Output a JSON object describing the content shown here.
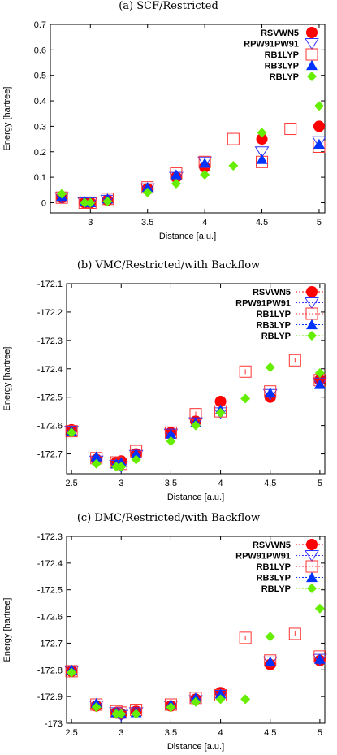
{
  "chart_data": [
    {
      "type": "scatter",
      "title": "(a)  SCF/Restricted",
      "xlabel": "Distance [a.u.]",
      "ylabel": "Energy [hartree]",
      "xlim": [
        2.65,
        5.05
      ],
      "ylim": [
        -0.04,
        0.7
      ],
      "xticks": [
        3,
        3.5,
        4,
        4.5,
        5
      ],
      "yticks": [
        0,
        0.1,
        0.2,
        0.3,
        0.4,
        0.5,
        0.6,
        0.7
      ],
      "legend": "top-right",
      "error_bars": false,
      "series": [
        {
          "name": "RSVWN5",
          "marker": "circle",
          "color": "#ff0000",
          "x": [
            2.75,
            2.95,
            3.0,
            3.15,
            3.5,
            3.75,
            4.0,
            4.5,
            5.0
          ],
          "y": [
            0.02,
            0.0,
            0.0,
            0.01,
            0.055,
            0.1,
            0.14,
            0.25,
            0.3
          ]
        },
        {
          "name": "RPW91PW91",
          "marker": "triangle-down",
          "color": "#3333ff",
          "x": [
            2.75,
            2.95,
            3.0,
            3.15,
            3.5,
            3.75,
            4.0,
            4.5,
            5.0
          ],
          "y": [
            0.02,
            0.0,
            0.0,
            0.01,
            0.055,
            0.1,
            0.16,
            0.2,
            0.24
          ]
        },
        {
          "name": "RB1LYP",
          "marker": "square",
          "color": "#ff3333",
          "x": [
            2.75,
            2.95,
            3.0,
            3.15,
            3.5,
            3.75,
            4.0,
            4.25,
            4.5,
            4.75,
            5.0
          ],
          "y": [
            0.02,
            0.0,
            0.0,
            0.015,
            0.06,
            0.115,
            0.16,
            0.25,
            0.16,
            0.29,
            0.22
          ]
        },
        {
          "name": "RB3LYP",
          "marker": "triangle-up",
          "color": "#0033ff",
          "x": [
            2.75,
            2.95,
            3.0,
            3.15,
            3.5,
            3.75,
            4.0,
            4.5,
            5.0
          ],
          "y": [
            0.025,
            0.005,
            0.0,
            0.015,
            0.06,
            0.11,
            0.155,
            0.17,
            0.23
          ]
        },
        {
          "name": "RBLYP",
          "marker": "diamond",
          "color": "#66ee00",
          "x": [
            2.75,
            2.95,
            3.0,
            3.15,
            3.5,
            3.75,
            4.0,
            4.25,
            4.5,
            5.0
          ],
          "y": [
            0.035,
            0.0,
            0.0,
            0.005,
            0.04,
            0.075,
            0.11,
            0.145,
            0.275,
            0.38
          ]
        }
      ]
    },
    {
      "type": "scatter",
      "title": "(b)  VMC/Restricted/with Backflow",
      "xlabel": "Distance [a.u.]",
      "ylabel": "Energy [hartree]",
      "xlim": [
        2.45,
        5.05
      ],
      "ylim": [
        -172.77,
        -172.1
      ],
      "xticks": [
        2.5,
        3,
        3.5,
        4,
        4.5,
        5
      ],
      "yticks": [
        -172.1,
        -172.2,
        -172.3,
        -172.4,
        -172.5,
        -172.6,
        -172.7
      ],
      "legend": "top-right",
      "error_bars": true,
      "series": [
        {
          "name": "RSVWN5",
          "marker": "circle",
          "color": "#ff0000",
          "x": [
            2.5,
            2.75,
            2.95,
            3.0,
            3.15,
            3.5,
            3.75,
            4.0,
            4.5,
            5.0
          ],
          "y": [
            -172.615,
            -172.72,
            -172.73,
            -172.725,
            -172.7,
            -172.625,
            -172.585,
            -172.515,
            -172.5,
            -172.44
          ]
        },
        {
          "name": "RPW91PW91",
          "marker": "triangle-down",
          "color": "#3333ff",
          "x": [
            2.5,
            2.75,
            2.95,
            3.0,
            3.15,
            3.5,
            3.75,
            4.0,
            4.5,
            5.0
          ],
          "y": [
            -172.62,
            -172.725,
            -172.74,
            -172.745,
            -172.705,
            -172.63,
            -172.59,
            -172.555,
            -172.49,
            -172.45
          ]
        },
        {
          "name": "RB1LYP",
          "marker": "square",
          "color": "#ff3333",
          "x": [
            2.5,
            2.75,
            2.95,
            3.0,
            3.15,
            3.5,
            3.75,
            4.0,
            4.25,
            4.5,
            4.75,
            5.0
          ],
          "y": [
            -172.62,
            -172.715,
            -172.73,
            -172.735,
            -172.69,
            -172.625,
            -172.56,
            -172.55,
            -172.41,
            -172.48,
            -172.37,
            -172.44
          ]
        },
        {
          "name": "RB3LYP",
          "marker": "triangle-up",
          "color": "#0033ff",
          "x": [
            2.5,
            2.75,
            2.95,
            3.0,
            3.15,
            3.5,
            3.75,
            4.0,
            4.5,
            5.0
          ],
          "y": [
            -172.62,
            -172.71,
            -172.735,
            -172.73,
            -172.7,
            -172.63,
            -172.59,
            -172.545,
            -172.485,
            -172.455
          ]
        },
        {
          "name": "RBLYP",
          "marker": "diamond",
          "color": "#66ee00",
          "x": [
            2.5,
            2.75,
            2.95,
            3.0,
            3.15,
            3.5,
            3.75,
            4.0,
            4.25,
            4.5,
            5.0
          ],
          "y": [
            -172.625,
            -172.735,
            -172.745,
            -172.745,
            -172.72,
            -172.655,
            -172.6,
            -172.555,
            -172.505,
            -172.395,
            -172.415
          ]
        }
      ]
    },
    {
      "type": "scatter",
      "title": "(c)  DMC/Restricted/with Backflow",
      "xlabel": "Distance [a.u.]",
      "ylabel": "Energy [hartree]",
      "xlim": [
        2.45,
        5.05
      ],
      "ylim": [
        -173.0,
        -172.3
      ],
      "xticks": [
        2.5,
        3,
        3.5,
        4,
        4.5,
        5
      ],
      "yticks": [
        -172.3,
        -172.4,
        -172.5,
        -172.6,
        -172.7,
        -172.8,
        -172.9,
        -173
      ],
      "legend": "top-right",
      "error_bars": true,
      "series": [
        {
          "name": "RSVWN5",
          "marker": "circle",
          "color": "#ff0000",
          "x": [
            2.5,
            2.75,
            2.95,
            3.0,
            3.15,
            3.5,
            3.75,
            4.0,
            4.5,
            5.0
          ],
          "y": [
            -172.805,
            -172.935,
            -172.96,
            -172.965,
            -172.955,
            -172.935,
            -172.91,
            -172.885,
            -172.78,
            -172.765
          ]
        },
        {
          "name": "RPW91PW91",
          "marker": "triangle-down",
          "color": "#3333ff",
          "x": [
            2.5,
            2.75,
            2.95,
            3.0,
            3.15,
            3.5,
            3.75,
            4.0,
            4.5,
            5.0
          ],
          "y": [
            -172.805,
            -172.935,
            -172.96,
            -172.97,
            -172.96,
            -172.935,
            -172.915,
            -172.895,
            -172.77,
            -172.76
          ]
        },
        {
          "name": "RB1LYP",
          "marker": "square",
          "color": "#ff3333",
          "x": [
            2.5,
            2.75,
            2.95,
            3.0,
            3.15,
            3.5,
            3.75,
            4.0,
            4.25,
            4.5,
            4.75,
            5.0
          ],
          "y": [
            -172.805,
            -172.93,
            -172.955,
            -172.96,
            -172.95,
            -172.93,
            -172.905,
            -172.895,
            -172.68,
            -172.765,
            -172.665,
            -172.75
          ]
        },
        {
          "name": "RB3LYP",
          "marker": "triangle-up",
          "color": "#0033ff",
          "x": [
            2.5,
            2.75,
            2.95,
            3.0,
            3.15,
            3.5,
            3.75,
            4.0,
            4.5,
            5.0
          ],
          "y": [
            -172.8,
            -172.925,
            -172.96,
            -172.965,
            -172.96,
            -172.93,
            -172.905,
            -172.89,
            -172.77,
            -172.76
          ]
        },
        {
          "name": "RBLYP",
          "marker": "diamond",
          "color": "#66ee00",
          "x": [
            2.5,
            2.75,
            2.95,
            3.0,
            3.15,
            3.5,
            3.75,
            4.0,
            4.25,
            4.5,
            5.0
          ],
          "y": [
            -172.81,
            -172.94,
            -172.965,
            -172.965,
            -172.965,
            -172.94,
            -172.92,
            -172.91,
            -172.91,
            -172.675,
            -172.57
          ]
        }
      ]
    }
  ]
}
